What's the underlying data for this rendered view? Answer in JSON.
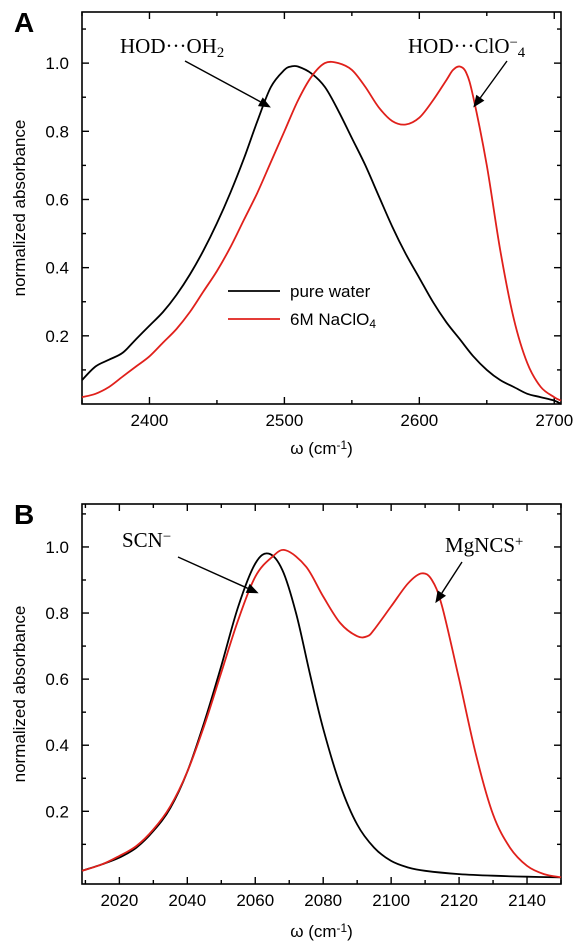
{
  "chart_data": [
    {
      "panel": "A",
      "type": "line",
      "xlabel_main": "ω (cm",
      "xlabel_sup": "-1",
      "xlabel_end": ")",
      "ylabel": "normalized absorbance",
      "xlim": [
        2350,
        2705
      ],
      "ylim": [
        0,
        1.15
      ],
      "xticks": [
        2400,
        2500,
        2600,
        2700
      ],
      "yticks": [
        0.2,
        0.4,
        0.6,
        0.8,
        1.0
      ],
      "ytick_labels": [
        "0.2",
        "0.4",
        "0.6",
        "0.8",
        "1.0"
      ],
      "legend": {
        "placement": "center",
        "items": [
          {
            "main": "pure water",
            "sub": "",
            "color": "#000000"
          },
          {
            "main": "6M NaClO",
            "sub": "4",
            "color": "#e0201b"
          }
        ]
      },
      "annotations": [
        {
          "main": "HOD···OH",
          "sub": "2",
          "sup": "",
          "arrow_to": [
            2490,
            0.87
          ]
        },
        {
          "main": "HOD···ClO",
          "sub": "4",
          "sup": "−",
          "arrow_to": [
            2640,
            0.87
          ]
        }
      ],
      "series": [
        {
          "name": "pure water",
          "color": "#000000",
          "x": [
            2350,
            2360,
            2370,
            2380,
            2390,
            2400,
            2410,
            2420,
            2430,
            2440,
            2450,
            2460,
            2470,
            2480,
            2490,
            2500,
            2505,
            2510,
            2520,
            2530,
            2540,
            2550,
            2560,
            2570,
            2580,
            2590,
            2600,
            2610,
            2620,
            2630,
            2640,
            2650,
            2660,
            2670,
            2680,
            2690,
            2700,
            2705
          ],
          "y": [
            0.07,
            0.11,
            0.13,
            0.15,
            0.19,
            0.23,
            0.27,
            0.32,
            0.38,
            0.45,
            0.53,
            0.62,
            0.72,
            0.83,
            0.93,
            0.98,
            0.99,
            0.99,
            0.97,
            0.93,
            0.86,
            0.78,
            0.7,
            0.61,
            0.52,
            0.44,
            0.37,
            0.3,
            0.24,
            0.19,
            0.14,
            0.1,
            0.07,
            0.05,
            0.03,
            0.02,
            0.01,
            0.0
          ]
        },
        {
          "name": "6M NaClO4",
          "color": "#e0201b",
          "x": [
            2350,
            2360,
            2370,
            2380,
            2390,
            2400,
            2410,
            2420,
            2430,
            2440,
            2450,
            2460,
            2470,
            2480,
            2490,
            2500,
            2510,
            2520,
            2530,
            2540,
            2550,
            2560,
            2570,
            2580,
            2590,
            2600,
            2610,
            2620,
            2625,
            2630,
            2635,
            2640,
            2650,
            2660,
            2670,
            2680,
            2690,
            2700,
            2705
          ],
          "y": [
            0.02,
            0.03,
            0.05,
            0.08,
            0.11,
            0.14,
            0.18,
            0.22,
            0.27,
            0.33,
            0.39,
            0.46,
            0.54,
            0.62,
            0.71,
            0.8,
            0.89,
            0.96,
            1.0,
            1.0,
            0.98,
            0.93,
            0.87,
            0.83,
            0.82,
            0.84,
            0.89,
            0.95,
            0.98,
            0.99,
            0.97,
            0.9,
            0.7,
            0.45,
            0.25,
            0.12,
            0.05,
            0.02,
            0.01
          ]
        }
      ]
    },
    {
      "panel": "B",
      "type": "line",
      "xlabel_main": "ω (cm",
      "xlabel_sup": "-1",
      "xlabel_end": ")",
      "ylabel": "normalized absorbance",
      "xlim": [
        2009,
        2150
      ],
      "ylim": [
        -0.02,
        1.13
      ],
      "xticks": [
        2020,
        2040,
        2060,
        2080,
        2100,
        2120,
        2140
      ],
      "yticks": [
        0.2,
        0.4,
        0.6,
        0.8,
        1.0
      ],
      "ytick_labels": [
        "0.2",
        "0.4",
        "0.6",
        "0.8",
        "1.0"
      ],
      "annotations": [
        {
          "main": "SCN",
          "sub": "",
          "sup": "−",
          "arrow_to": [
            2061,
            0.86
          ]
        },
        {
          "main": "MgNCS",
          "sub": "",
          "sup": "+",
          "arrow_to": [
            2113,
            0.83
          ]
        }
      ],
      "series": [
        {
          "name": "SCN-",
          "color": "#000000",
          "x": [
            2009,
            2015,
            2020,
            2025,
            2030,
            2035,
            2040,
            2045,
            2050,
            2055,
            2060,
            2064,
            2068,
            2072,
            2076,
            2080,
            2085,
            2090,
            2095,
            2100,
            2105,
            2110,
            2120,
            2130,
            2140,
            2150
          ],
          "y": [
            0.02,
            0.04,
            0.06,
            0.09,
            0.14,
            0.21,
            0.32,
            0.47,
            0.64,
            0.82,
            0.95,
            0.98,
            0.93,
            0.8,
            0.62,
            0.45,
            0.28,
            0.16,
            0.09,
            0.05,
            0.03,
            0.02,
            0.01,
            0.005,
            0.002,
            0.0
          ]
        },
        {
          "name": "MgNCS+",
          "color": "#e0201b",
          "x": [
            2009,
            2015,
            2020,
            2025,
            2030,
            2035,
            2040,
            2045,
            2050,
            2055,
            2060,
            2065,
            2069,
            2075,
            2080,
            2085,
            2090,
            2093,
            2095,
            2100,
            2105,
            2109,
            2112,
            2115,
            2120,
            2125,
            2130,
            2135,
            2140,
            2145,
            2150
          ],
          "y": [
            0.02,
            0.04,
            0.065,
            0.095,
            0.145,
            0.215,
            0.32,
            0.46,
            0.62,
            0.78,
            0.91,
            0.97,
            0.99,
            0.94,
            0.85,
            0.77,
            0.73,
            0.73,
            0.75,
            0.82,
            0.89,
            0.92,
            0.9,
            0.82,
            0.6,
            0.37,
            0.19,
            0.09,
            0.035,
            0.01,
            0.0
          ]
        }
      ]
    }
  ]
}
